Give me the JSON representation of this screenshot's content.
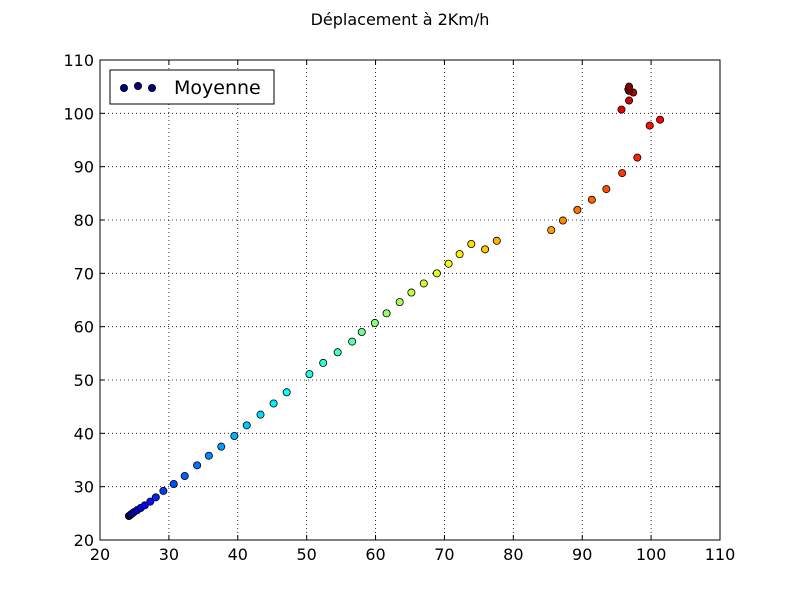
{
  "chart_data": {
    "type": "scatter",
    "title": "Déplacement à 2Km/h",
    "xlabel": "",
    "ylabel": "",
    "xlim": [
      20,
      110
    ],
    "ylim": [
      20,
      110
    ],
    "xticks": [
      20,
      30,
      40,
      50,
      60,
      70,
      80,
      90,
      100,
      110
    ],
    "yticks": [
      20,
      30,
      40,
      50,
      60,
      70,
      80,
      90,
      100,
      110
    ],
    "grid": true,
    "legend": {
      "position": "top-left",
      "entries": [
        "Moyenne"
      ]
    },
    "colormap": "jet",
    "series": [
      {
        "name": "Moyenne",
        "points": [
          [
            24.2,
            24.5
          ],
          [
            24.4,
            24.7
          ],
          [
            24.6,
            24.9
          ],
          [
            24.9,
            25.2
          ],
          [
            25.4,
            25.6
          ],
          [
            25.9,
            26.0
          ],
          [
            26.5,
            26.5
          ],
          [
            27.3,
            27.2
          ],
          [
            28.1,
            28.0
          ],
          [
            29.2,
            29.2
          ],
          [
            30.7,
            30.5
          ],
          [
            32.3,
            32.0
          ],
          [
            34.1,
            34.0
          ],
          [
            35.8,
            35.8
          ],
          [
            37.6,
            37.5
          ],
          [
            39.5,
            39.5
          ],
          [
            41.3,
            41.5
          ],
          [
            43.3,
            43.5
          ],
          [
            45.2,
            45.6
          ],
          [
            47.1,
            47.7
          ],
          [
            50.4,
            51.1
          ],
          [
            52.4,
            53.2
          ],
          [
            54.5,
            55.2
          ],
          [
            56.6,
            57.2
          ],
          [
            58.0,
            59.0
          ],
          [
            59.9,
            60.7
          ],
          [
            61.6,
            62.5
          ],
          [
            63.5,
            64.6
          ],
          [
            65.2,
            66.4
          ],
          [
            67.0,
            68.1
          ],
          [
            68.9,
            70.0
          ],
          [
            70.6,
            71.8
          ],
          [
            72.2,
            73.6
          ],
          [
            73.9,
            75.5
          ],
          [
            75.9,
            74.5
          ],
          [
            77.6,
            76.1
          ],
          [
            85.5,
            78.1
          ],
          [
            87.2,
            79.9
          ],
          [
            89.3,
            81.9
          ],
          [
            91.4,
            83.8
          ],
          [
            93.5,
            85.8
          ],
          [
            95.8,
            88.8
          ],
          [
            98.0,
            91.7
          ],
          [
            99.8,
            97.7
          ],
          [
            101.3,
            98.8
          ],
          [
            95.7,
            100.7
          ],
          [
            96.8,
            102.4
          ],
          [
            97.4,
            103.9
          ],
          [
            96.8,
            104.2
          ],
          [
            96.7,
            104.5
          ],
          [
            96.8,
            105.0
          ]
        ]
      }
    ]
  }
}
